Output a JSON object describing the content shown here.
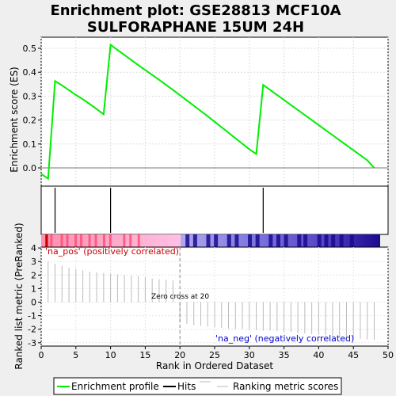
{
  "chart_data": [
    {
      "type": "line",
      "title": "Enrichment plot: GSE28813 MCF10A SULFORAPHANE 15UM 24H",
      "ylabel": "Enrichment score (ES)",
      "xlim": [
        0,
        50
      ],
      "ylim": [
        -0.05,
        0.55
      ],
      "yticks": [
        0.0,
        0.1,
        0.2,
        0.3,
        0.4,
        0.5
      ],
      "grid": true,
      "series": [
        {
          "name": "Enrichment profile",
          "color": "#00ee00",
          "x": [
            0,
            1,
            2,
            3,
            4,
            5,
            6,
            7,
            8,
            9,
            10,
            11,
            12,
            13,
            14,
            15,
            16,
            17,
            18,
            19,
            20,
            21,
            22,
            23,
            24,
            25,
            26,
            27,
            28,
            29,
            30,
            31,
            32,
            33,
            34,
            35,
            36,
            37,
            38,
            39,
            40,
            41,
            42,
            43,
            44,
            45,
            46,
            47,
            48
          ],
          "y": [
            -0.025,
            -0.045,
            0.363,
            0.345,
            0.325,
            0.305,
            0.287,
            0.267,
            0.246,
            0.224,
            0.515,
            0.493,
            0.472,
            0.451,
            0.43,
            0.409,
            0.389,
            0.368,
            0.347,
            0.326,
            0.304,
            0.282,
            0.26,
            0.238,
            0.216,
            0.193,
            0.17,
            0.147,
            0.124,
            0.101,
            0.078,
            0.058,
            0.347,
            0.326,
            0.305,
            0.284,
            0.263,
            0.242,
            0.221,
            0.2,
            0.179,
            0.158,
            0.137,
            0.116,
            0.095,
            0.074,
            0.053,
            0.032,
            0.0
          ]
        }
      ]
    },
    {
      "type": "hits",
      "xlim": [
        0,
        50
      ],
      "series": [
        {
          "name": "Hits",
          "color": "#000000",
          "x": [
            2,
            10,
            32
          ]
        }
      ]
    },
    {
      "type": "bar",
      "xlabel": "Rank in Ordered Dataset",
      "ylabel": "Ranked list metric (PreRanked)",
      "xlim": [
        0,
        50
      ],
      "ylim": [
        -3,
        4
      ],
      "xticks": [
        0,
        5,
        10,
        15,
        20,
        25,
        30,
        35,
        40,
        45,
        50
      ],
      "yticks": [
        -3,
        -2,
        -1,
        0,
        1,
        2,
        3,
        4
      ],
      "annotations": [
        {
          "text": "'na_pos' (positively correlated)",
          "color": "#cc0000"
        },
        {
          "text": "Zero cross at 20",
          "color": "#000000"
        },
        {
          "text": "'na_neg' (negatively correlated)",
          "color": "#0000cc"
        }
      ],
      "zero_cross": 20,
      "series": [
        {
          "name": "Ranking metric scores",
          "color": "#bbbbbb",
          "x": [
            1,
            2,
            3,
            4,
            5,
            6,
            7,
            8,
            9,
            10,
            11,
            12,
            13,
            14,
            15,
            16,
            17,
            18,
            19,
            20,
            21,
            22,
            23,
            24,
            25,
            26,
            27,
            28,
            29,
            30,
            31,
            32,
            33,
            34,
            35,
            36,
            37,
            38,
            39,
            40,
            41,
            42,
            43,
            44,
            45,
            46,
            47,
            48
          ],
          "values": [
            3.0,
            2.85,
            2.7,
            2.55,
            2.45,
            2.35,
            2.25,
            2.2,
            2.15,
            2.1,
            2.05,
            2.0,
            1.95,
            1.9,
            1.85,
            1.75,
            1.7,
            1.65,
            1.6,
            -1.5,
            -1.6,
            -1.7,
            -1.75,
            -1.8,
            -1.85,
            -1.9,
            -1.95,
            -2.0,
            -2.0,
            -2.0,
            -2.05,
            -2.1,
            -2.1,
            -2.15,
            -2.2,
            -2.2,
            -2.25,
            -2.3,
            -2.35,
            -2.4,
            -2.45,
            -2.5,
            -2.55,
            -2.6,
            -2.65,
            -2.7,
            -2.75,
            -2.8
          ]
        }
      ]
    }
  ],
  "legend": {
    "entries": [
      {
        "label": "Enrichment profile",
        "color": "#00ee00"
      },
      {
        "label": "Hits",
        "color": "#000000"
      },
      {
        "label": "Ranking metric scores",
        "color": "#bbbbbb"
      }
    ]
  }
}
